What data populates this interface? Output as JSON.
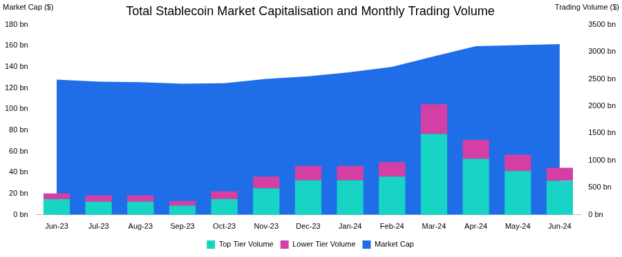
{
  "chart_data": {
    "type": "bar",
    "title": "Total Stablecoin Market Capitalisation and Monthly Trading Volume",
    "ylabel": "Market Cap ($)",
    "y2label": "Trading Volume ($)",
    "categories": [
      "Jun-23",
      "Jul-23",
      "Aug-23",
      "Sep-23",
      "Oct-23",
      "Nov-23",
      "Dec-23",
      "Jan-24",
      "Feb-24",
      "Mar-24",
      "Apr-24",
      "May-24",
      "Jun-24"
    ],
    "series": [
      {
        "name": "Market Cap",
        "type": "area",
        "color": "#1f6ee8",
        "values": [
          128,
          126,
          125.5,
          124,
          124.5,
          128.5,
          131,
          135,
          140,
          150,
          159.5,
          160.5,
          161.5
        ]
      },
      {
        "name": "Top Tier Volume",
        "type": "bar",
        "axis": "y2",
        "color": "#17d4c4",
        "values": [
          290,
          240,
          240,
          170,
          290,
          490,
          635,
          635,
          705,
          1485,
          1030,
          805,
          625
        ]
      },
      {
        "name": "Lower Tier Volume",
        "type": "bar",
        "axis": "y2",
        "color": "#d43fa6",
        "values": [
          105,
          120,
          120,
          85,
          140,
          215,
          265,
          265,
          265,
          550,
          350,
          300,
          240
        ]
      }
    ],
    "ylim": [
      0,
      180
    ],
    "yticks": [
      {
        "value": 0,
        "label": "0 bn"
      },
      {
        "value": 20,
        "label": "20 bn"
      },
      {
        "value": 40,
        "label": "40 bn"
      },
      {
        "value": 60,
        "label": "60 bn"
      },
      {
        "value": 80,
        "label": "80 bn"
      },
      {
        "value": 100,
        "label": "100 bn"
      },
      {
        "value": 120,
        "label": "120 bn"
      },
      {
        "value": 140,
        "label": "140 bn"
      },
      {
        "value": 160,
        "label": "160 bn"
      },
      {
        "value": 180,
        "label": "180 bn"
      }
    ],
    "y2lim": [
      0,
      3500
    ],
    "y2ticks": [
      {
        "value": 0,
        "label": "0 bn"
      },
      {
        "value": 500,
        "label": "500 bn"
      },
      {
        "value": 1000,
        "label": "1000 bn"
      },
      {
        "value": 1500,
        "label": "1500 bn"
      },
      {
        "value": 2000,
        "label": "2000 bn"
      },
      {
        "value": 2500,
        "label": "2500 bn"
      },
      {
        "value": 3000,
        "label": "3000 bn"
      },
      {
        "value": 3500,
        "label": "3500 bn"
      }
    ],
    "stacked": true,
    "grid": false,
    "legend": "bottom"
  }
}
